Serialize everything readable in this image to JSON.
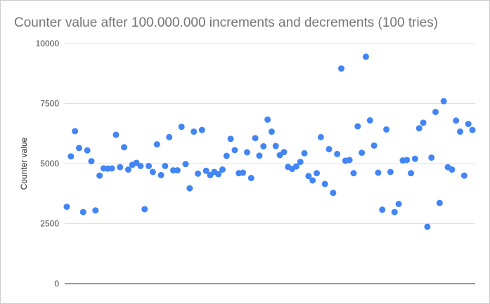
{
  "chart_data": {
    "type": "scatter",
    "title": "Counter value after 100.000.000 increments and decrements (100 tries)",
    "xlabel": "",
    "ylabel": "Counter value",
    "ylim": [
      0,
      10000
    ],
    "yticks": [
      "0",
      "2500",
      "5000",
      "7500",
      "10000"
    ],
    "grid": true,
    "legend": "none",
    "point_color": "#4285f4",
    "series": [
      {
        "values": [
          3200,
          5300,
          6350,
          5650,
          2980,
          5550,
          5100,
          3050,
          4500,
          4800,
          4790,
          4800,
          6200,
          4850,
          5680,
          4750,
          4950,
          5030,
          4900,
          3100,
          4900,
          4650,
          5800,
          4520,
          4900,
          6100,
          4720,
          4720,
          6530,
          4980,
          3970,
          6330,
          4580,
          6400,
          4700,
          4520,
          4650,
          4560,
          4750,
          5320,
          6030,
          5560,
          4600,
          4620,
          5470,
          4400,
          6060,
          5330,
          5720,
          6830,
          6330,
          5730,
          5350,
          5480,
          4860,
          4780,
          4880,
          5070,
          5430,
          4480,
          4300,
          4600,
          6100,
          4150,
          5600,
          3780,
          5400,
          8960,
          5120,
          5150,
          4600,
          6550,
          5450,
          9450,
          6800,
          5750,
          4620,
          3080,
          6420,
          4650,
          2980,
          3320,
          5130,
          5150,
          4600,
          5200,
          6470,
          6700,
          2370,
          5250,
          7150,
          3360,
          7600,
          4850,
          4750,
          6790,
          6330,
          4500,
          6650,
          6400
        ]
      }
    ]
  }
}
